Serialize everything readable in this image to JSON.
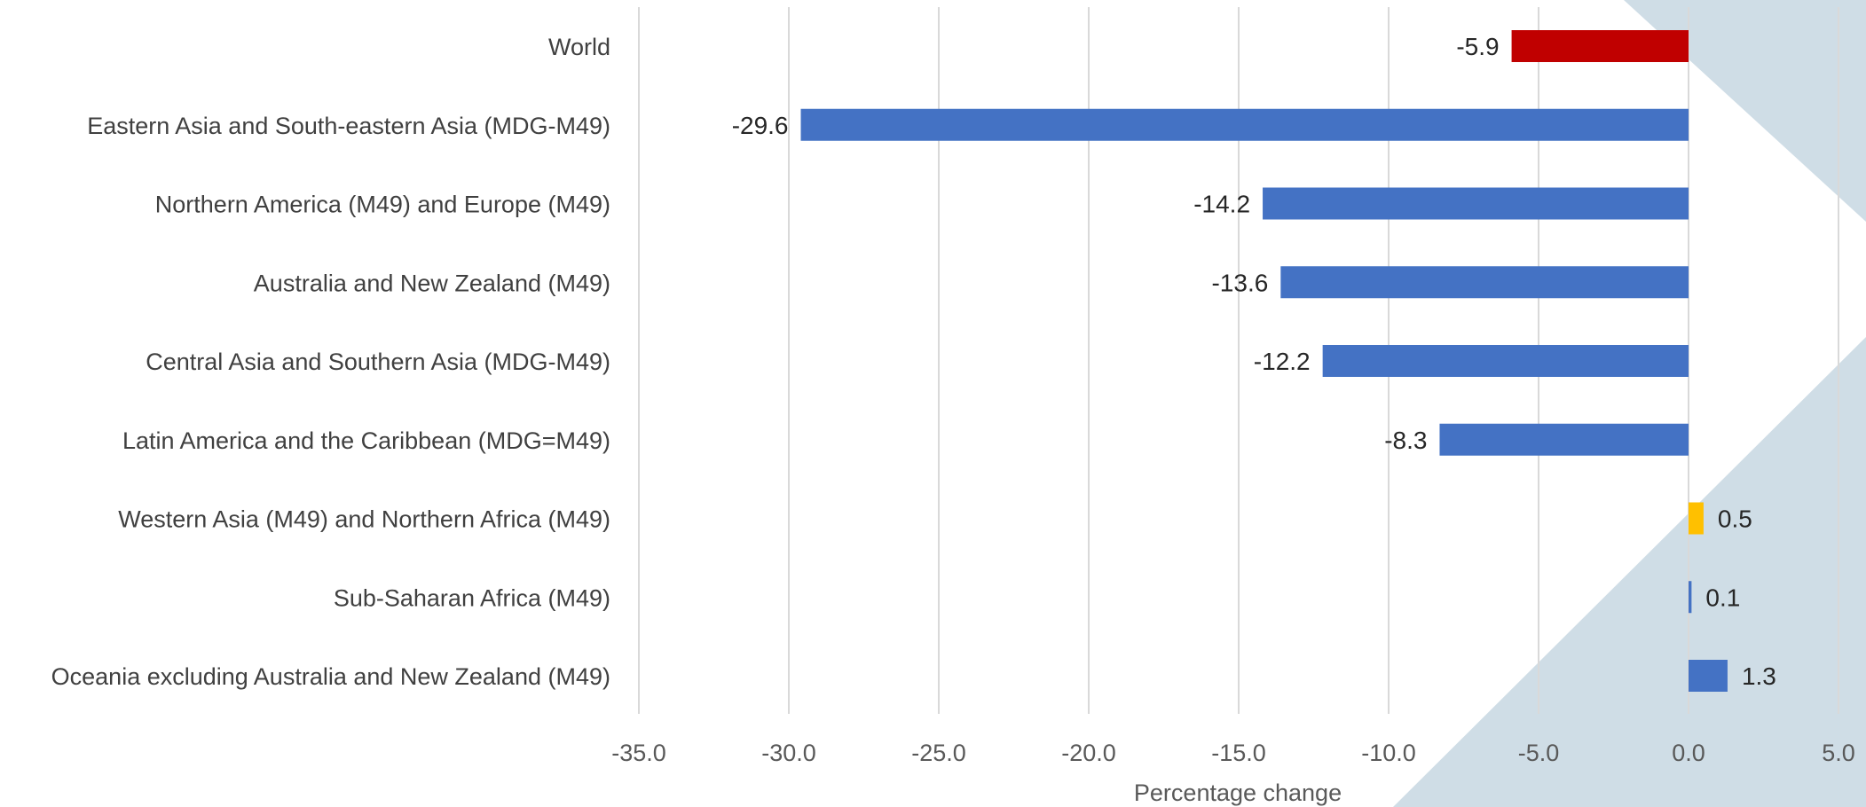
{
  "chart_data": {
    "type": "bar",
    "orientation": "horizontal",
    "categories": [
      "World",
      "Eastern Asia and South-eastern Asia (MDG-M49)",
      "Northern America (M49) and Europe  (M49)",
      "Australia and New Zealand (M49)",
      "Central Asia and Southern Asia (MDG-M49)",
      "Latin America and the Caribbean (MDG=M49)",
      "Western Asia (M49) and Northern Africa (M49)",
      "Sub-Saharan Africa (M49)",
      "Oceania excluding Australia and New Zealand (M49)"
    ],
    "values": [
      -5.9,
      -29.6,
      -14.2,
      -13.6,
      -12.2,
      -8.3,
      0.5,
      0.1,
      1.3
    ],
    "value_labels": [
      "-5.9",
      "-29.6",
      "-14.2",
      "-13.6",
      "-12.2",
      "-8.3",
      "0.5",
      "0.1",
      "1.3"
    ],
    "bar_colors": [
      "#C00000",
      "#4472C4",
      "#4472C4",
      "#4472C4",
      "#4472C4",
      "#4472C4",
      "#FFC000",
      "#4472C4",
      "#4472C4"
    ],
    "xlabel": "Percentage change",
    "ylabel": "",
    "xlim": [
      -35,
      5
    ],
    "xticks": [
      -35,
      -30,
      -25,
      -20,
      -15,
      -10,
      -5,
      0,
      5
    ],
    "xtick_labels": [
      "-35.0",
      "-30.0",
      "-25.0",
      "-20.0",
      "-15.0",
      "-10.0",
      "-5.0",
      "0.0",
      "5.0"
    ],
    "grid": "vertical",
    "legend": "none"
  },
  "colors": {
    "gridline": "#D9D9D9",
    "background_shape": "#CFDDE6"
  }
}
